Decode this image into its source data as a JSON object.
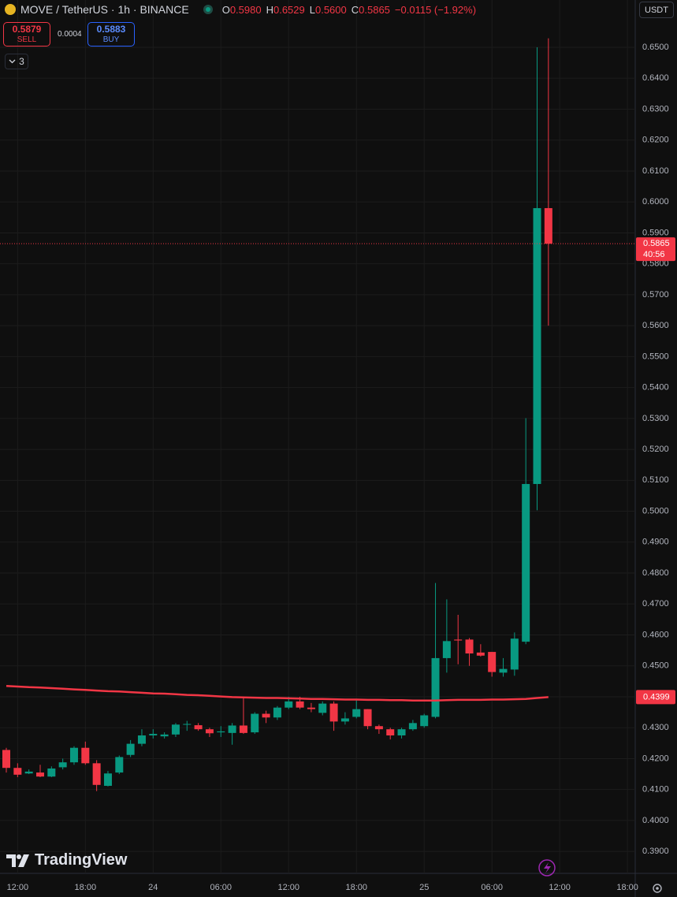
{
  "chart_data": {
    "type": "candlestick",
    "title": "MOVE / TetherUS · 1h · BINANCE",
    "ohlc_header": [
      {
        "key": "O",
        "text": "0.5980"
      },
      {
        "key": "H",
        "text": "0.6529"
      },
      {
        "key": "L",
        "text": "0.5600"
      },
      {
        "key": "C",
        "text": "0.5865"
      }
    ],
    "change": "−0.0115 (−1.92%)",
    "sell": {
      "price": "0.5879",
      "label": "SELL"
    },
    "spread": "0.0004",
    "buy": {
      "price": "0.5883",
      "label": "BUY"
    },
    "indicator_count": "3",
    "currency": "USDT",
    "countdown": "40:56",
    "logo": "TradingView",
    "categories": [
      null,
      "12:00",
      null,
      null,
      null,
      null,
      null,
      "18:00",
      null,
      null,
      null,
      null,
      null,
      "24",
      null,
      null,
      null,
      null,
      null,
      "06:00",
      null,
      null,
      null,
      null,
      null,
      "12:00",
      null,
      null,
      null,
      null,
      null,
      "18:00",
      null,
      null,
      null,
      null,
      null,
      "25",
      null,
      null,
      null,
      null,
      null,
      "06:00",
      null,
      null,
      null,
      null,
      null
    ],
    "x_labels_after": [
      "12:00",
      "18:00"
    ],
    "open": [
      0.4228,
      0.417,
      0.4152,
      0.4155,
      0.4142,
      0.4172,
      0.4188,
      0.4235,
      0.4185,
      0.4112,
      0.4155,
      0.4212,
      0.4248,
      0.4275,
      0.4272,
      0.4278,
      0.431,
      0.4308,
      0.4295,
      0.4285,
      0.4283,
      0.4307,
      0.4285,
      0.4345,
      0.4333,
      0.4365,
      0.4385,
      0.4365,
      0.4348,
      0.4378,
      0.432,
      0.4335,
      0.436,
      0.4305,
      0.4295,
      0.4275,
      0.4295,
      0.4305,
      0.4335,
      0.4525,
      0.4585,
      0.4585,
      0.4543,
      0.4545,
      0.4478,
      0.4488,
      0.4578,
      0.5088,
      0.598
    ],
    "high": [
      0.4235,
      0.4185,
      0.4165,
      0.418,
      0.4175,
      0.42,
      0.424,
      0.4255,
      0.4195,
      0.416,
      0.421,
      0.426,
      0.4295,
      0.4295,
      0.4285,
      0.4315,
      0.4322,
      0.4315,
      0.43,
      0.4305,
      0.4315,
      0.4396,
      0.435,
      0.4355,
      0.437,
      0.44,
      0.44,
      0.438,
      0.4385,
      0.4385,
      0.435,
      0.439,
      0.436,
      0.431,
      0.43,
      0.43,
      0.4325,
      0.4345,
      0.4768,
      0.4715,
      0.4665,
      0.459,
      0.457,
      0.4545,
      0.4525,
      0.4608,
      0.5301,
      0.65,
      0.6529
    ],
    "low": [
      0.4155,
      0.414,
      0.415,
      0.414,
      0.414,
      0.4165,
      0.418,
      0.418,
      0.4095,
      0.411,
      0.415,
      0.4205,
      0.424,
      0.4265,
      0.4265,
      0.427,
      0.429,
      0.429,
      0.427,
      0.427,
      0.4245,
      0.428,
      0.428,
      0.4315,
      0.4325,
      0.436,
      0.436,
      0.435,
      0.434,
      0.429,
      0.431,
      0.433,
      0.4295,
      0.428,
      0.4262,
      0.4265,
      0.429,
      0.43,
      0.433,
      0.4478,
      0.4505,
      0.45,
      0.453,
      0.4465,
      0.4465,
      0.4468,
      0.457,
      0.5003,
      0.56
    ],
    "close": [
      0.417,
      0.4148,
      0.4158,
      0.4142,
      0.4168,
      0.4188,
      0.4235,
      0.4185,
      0.4115,
      0.4152,
      0.4205,
      0.4248,
      0.4275,
      0.428,
      0.4278,
      0.431,
      0.4312,
      0.4295,
      0.4282,
      0.4288,
      0.4307,
      0.4283,
      0.4345,
      0.4333,
      0.4365,
      0.4385,
      0.4365,
      0.436,
      0.4378,
      0.432,
      0.433,
      0.436,
      0.4305,
      0.4295,
      0.4275,
      0.4295,
      0.4315,
      0.434,
      0.4525,
      0.458,
      0.4582,
      0.454,
      0.4533,
      0.448,
      0.449,
      0.4588,
      0.5088,
      0.598,
      0.5865
    ],
    "up_color": "#089981",
    "down_color": "#f23645",
    "ma": {
      "color": "#f23645",
      "values": [
        0.4435,
        0.4433,
        0.4431,
        0.443,
        0.4428,
        0.4426,
        0.4424,
        0.4422,
        0.442,
        0.4418,
        0.4417,
        0.4415,
        0.4413,
        0.4411,
        0.441,
        0.4408,
        0.4406,
        0.4405,
        0.4403,
        0.4401,
        0.4399,
        0.4398,
        0.4397,
        0.4396,
        0.4396,
        0.4395,
        0.4394,
        0.4393,
        0.4393,
        0.4392,
        0.4391,
        0.4391,
        0.439,
        0.439,
        0.4389,
        0.4389,
        0.4388,
        0.4388,
        0.4388,
        0.4389,
        0.439,
        0.439,
        0.439,
        0.4391,
        0.4391,
        0.4392,
        0.4393,
        0.4396,
        0.4399
      ]
    },
    "ylim": [
      0.3829,
      0.6653
    ],
    "yticks": [
      {
        "value": 0.39,
        "label": "0.3900"
      },
      {
        "value": 0.4,
        "label": "0.4000"
      },
      {
        "value": 0.41,
        "label": "0.4100"
      },
      {
        "value": 0.42,
        "label": "0.4200"
      },
      {
        "value": 0.43,
        "label": "0.4300"
      },
      {
        "value": 0.44,
        "label": "0.4400"
      },
      {
        "value": 0.45,
        "label": "0.4500"
      },
      {
        "value": 0.46,
        "label": "0.4600"
      },
      {
        "value": 0.47,
        "label": "0.4700"
      },
      {
        "value": 0.48,
        "label": "0.4800"
      },
      {
        "value": 0.49,
        "label": "0.4900"
      },
      {
        "value": 0.5,
        "label": "0.5000"
      },
      {
        "value": 0.51,
        "label": "0.5100"
      },
      {
        "value": 0.52,
        "label": "0.5200"
      },
      {
        "value": 0.53,
        "label": "0.5300"
      },
      {
        "value": 0.54,
        "label": "0.5400"
      },
      {
        "value": 0.55,
        "label": "0.5500"
      },
      {
        "value": 0.56,
        "label": "0.5600"
      },
      {
        "value": 0.57,
        "label": "0.5700"
      },
      {
        "value": 0.58,
        "label": "0.5800"
      },
      {
        "value": 0.59,
        "label": "0.5900"
      },
      {
        "value": 0.6,
        "label": "0.6000"
      },
      {
        "value": 0.61,
        "label": "0.6100"
      },
      {
        "value": 0.62,
        "label": "0.6200"
      },
      {
        "value": 0.63,
        "label": "0.6300"
      },
      {
        "value": 0.64,
        "label": "0.6400"
      },
      {
        "value": 0.65,
        "label": "0.6500"
      }
    ],
    "grid": true
  }
}
